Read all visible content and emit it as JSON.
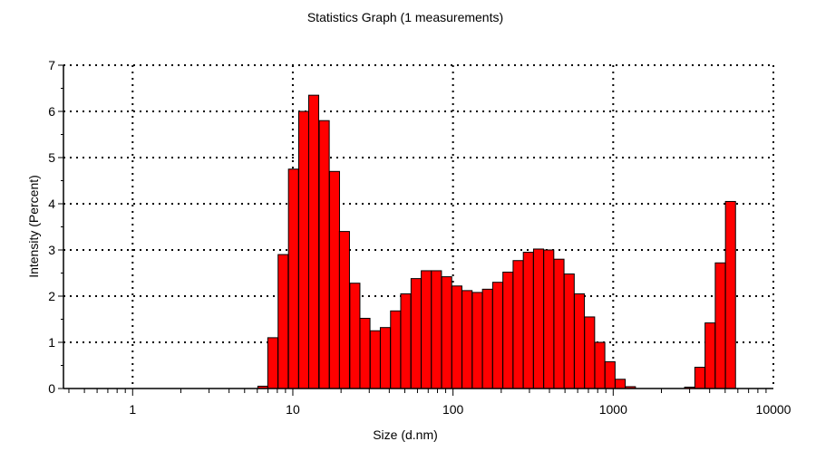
{
  "chart_data": {
    "type": "bar",
    "title": "Statistics Graph (1 measurements)",
    "xlabel": "Size (d.nm)",
    "ylabel": "Intensity (Percent)",
    "x_scale": "log",
    "xlim": [
      0.37,
      10000
    ],
    "ylim": [
      0,
      7
    ],
    "x_ticks": [
      1,
      10,
      100,
      1000,
      10000
    ],
    "x_tick_labels": [
      "1",
      "10",
      "100",
      "1000",
      "10000"
    ],
    "y_ticks": [
      0,
      1,
      2,
      3,
      4,
      5,
      6,
      7
    ],
    "y_tick_labels": [
      "0",
      "1",
      "2",
      "3",
      "4",
      "5",
      "6",
      "7"
    ],
    "grid": true,
    "bar_color": "#ff0000",
    "bin_factor": 1.1555,
    "bars": [
      {
        "size": 6.5,
        "value": 0.05
      },
      {
        "size": 7.5,
        "value": 1.1
      },
      {
        "size": 8.7,
        "value": 2.9
      },
      {
        "size": 10.1,
        "value": 4.75
      },
      {
        "size": 11.7,
        "value": 6.0
      },
      {
        "size": 13.5,
        "value": 6.35
      },
      {
        "size": 15.7,
        "value": 5.8
      },
      {
        "size": 18.2,
        "value": 4.7
      },
      {
        "size": 21.0,
        "value": 3.4
      },
      {
        "size": 24.4,
        "value": 2.28
      },
      {
        "size": 28.2,
        "value": 1.52
      },
      {
        "size": 32.7,
        "value": 1.25
      },
      {
        "size": 37.8,
        "value": 1.32
      },
      {
        "size": 43.8,
        "value": 1.68
      },
      {
        "size": 50.7,
        "value": 2.05
      },
      {
        "size": 58.8,
        "value": 2.38
      },
      {
        "size": 68.1,
        "value": 2.55
      },
      {
        "size": 78.8,
        "value": 2.55
      },
      {
        "size": 91.3,
        "value": 2.42
      },
      {
        "size": 105.7,
        "value": 2.22
      },
      {
        "size": 122.4,
        "value": 2.12
      },
      {
        "size": 141.8,
        "value": 2.08
      },
      {
        "size": 164.2,
        "value": 2.15
      },
      {
        "size": 190.1,
        "value": 2.3
      },
      {
        "size": 220.2,
        "value": 2.52
      },
      {
        "size": 255.0,
        "value": 2.77
      },
      {
        "size": 295.3,
        "value": 2.95
      },
      {
        "size": 342.0,
        "value": 3.02
      },
      {
        "size": 396.1,
        "value": 3.0
      },
      {
        "size": 458.7,
        "value": 2.8
      },
      {
        "size": 531.2,
        "value": 2.48
      },
      {
        "size": 615.1,
        "value": 2.05
      },
      {
        "size": 712.4,
        "value": 1.55
      },
      {
        "size": 825.0,
        "value": 1.0
      },
      {
        "size": 955.4,
        "value": 0.58
      },
      {
        "size": 1106,
        "value": 0.2
      },
      {
        "size": 1281,
        "value": 0.04
      },
      {
        "size": 3001,
        "value": 0.03
      },
      {
        "size": 3476,
        "value": 0.46
      },
      {
        "size": 4026,
        "value": 1.42
      },
      {
        "size": 4662,
        "value": 2.72
      },
      {
        "size": 5399,
        "value": 4.05
      }
    ]
  }
}
